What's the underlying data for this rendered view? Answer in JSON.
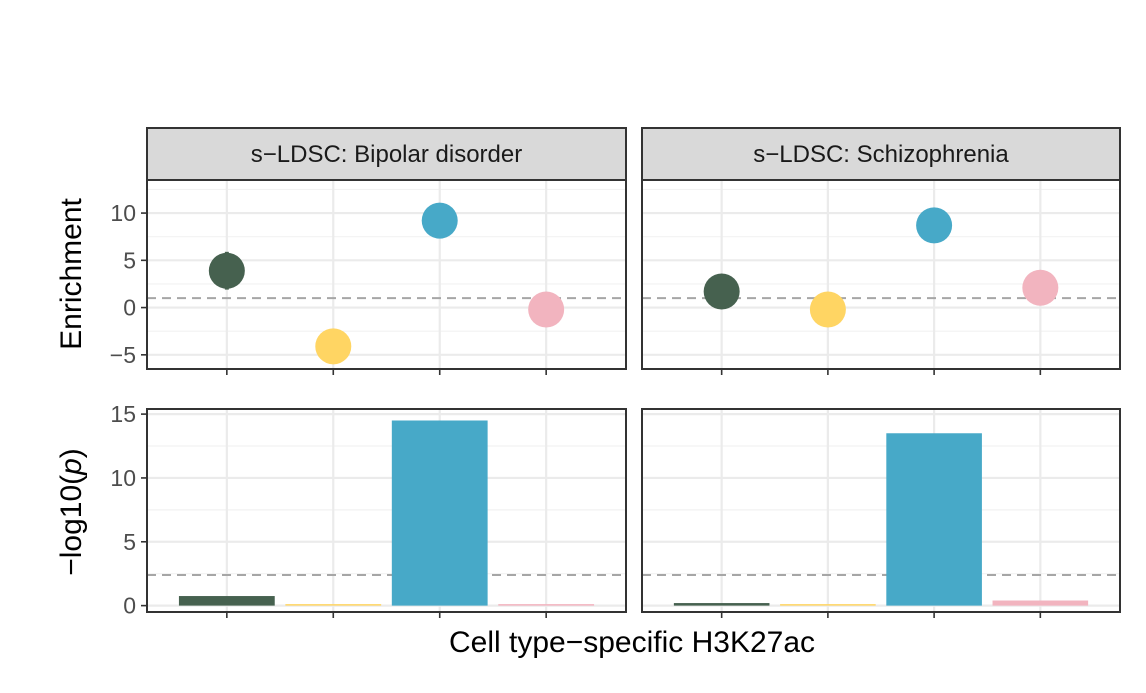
{
  "chart_data": [
    {
      "type": "scatter",
      "facet": "s−LDSC: Bipolar disorder",
      "ylabel": "Enrichment",
      "ylim": [
        -6.5,
        13.5
      ],
      "yticks": [
        -5,
        0,
        5,
        10
      ],
      "reference_line": 1,
      "x": [
        1,
        2,
        3,
        4
      ],
      "values": [
        3.9,
        -4.1,
        9.2,
        -0.2
      ],
      "error": [
        [
          1.9,
          5.9
        ],
        [
          -5.3,
          -2.9
        ],
        [
          9.2,
          9.2
        ],
        [
          -0.2,
          -0.2
        ]
      ],
      "colors": [
        "#46614f",
        "#ffd563",
        "#47a9c8",
        "#f2b4bf"
      ]
    },
    {
      "type": "scatter",
      "facet": "s−LDSC: Schizophrenia",
      "ylabel": "Enrichment",
      "ylim": [
        -6.5,
        13.5
      ],
      "yticks": [
        -5,
        0,
        5,
        10
      ],
      "reference_line": 1,
      "x": [
        1,
        2,
        3,
        4
      ],
      "values": [
        1.7,
        -0.2,
        8.7,
        2.1
      ],
      "error": [
        [
          0.9,
          2.6
        ],
        [
          -1.5,
          1.3
        ],
        [
          8.7,
          8.7
        ],
        [
          2.1,
          2.1
        ]
      ],
      "colors": [
        "#46614f",
        "#ffd563",
        "#47a9c8",
        "#f2b4bf"
      ]
    },
    {
      "type": "bar",
      "facet": "s−LDSC: Bipolar disorder",
      "ylabel": "−log10(p)",
      "ylim": [
        -0.5,
        15.4
      ],
      "yticks": [
        0,
        5,
        10,
        15
      ],
      "reference_line": 2.4,
      "x": [
        1,
        2,
        3,
        4
      ],
      "values": [
        0.75,
        0.0,
        14.5,
        0.05
      ],
      "colors": [
        "#46614f",
        "#ffd563",
        "#47a9c8",
        "#f2b4bf"
      ]
    },
    {
      "type": "bar",
      "facet": "s−LDSC: Schizophrenia",
      "ylabel": "−log10(p)",
      "ylim": [
        -0.5,
        15.4
      ],
      "yticks": [
        0,
        5,
        10,
        15
      ],
      "reference_line": 2.4,
      "x": [
        1,
        2,
        3,
        4
      ],
      "values": [
        0.2,
        0.05,
        13.5,
        0.4
      ],
      "colors": [
        "#46614f",
        "#ffd563",
        "#47a9c8",
        "#f2b4bf"
      ]
    }
  ],
  "labels": {
    "facet_left": "s−LDSC: Bipolar disorder",
    "facet_right": "s−LDSC: Schizophrenia",
    "ylabel_top": "Enrichment",
    "ylabel_bottom_prefix": "−log10(",
    "ylabel_bottom_var": "p",
    "ylabel_bottom_suffix": ")",
    "xlabel": "Cell type−specific H3K27ac",
    "yticks_top": [
      "−5",
      "0",
      "5",
      "10"
    ],
    "yticks_bottom": [
      "0",
      "5",
      "10",
      "15"
    ]
  },
  "colors": {
    "green": "#46614f",
    "yellow": "#ffd563",
    "blue": "#47a9c8",
    "pink": "#f2b4bf",
    "reference": "#a6a6a6",
    "strip": "#d9d9d9"
  }
}
